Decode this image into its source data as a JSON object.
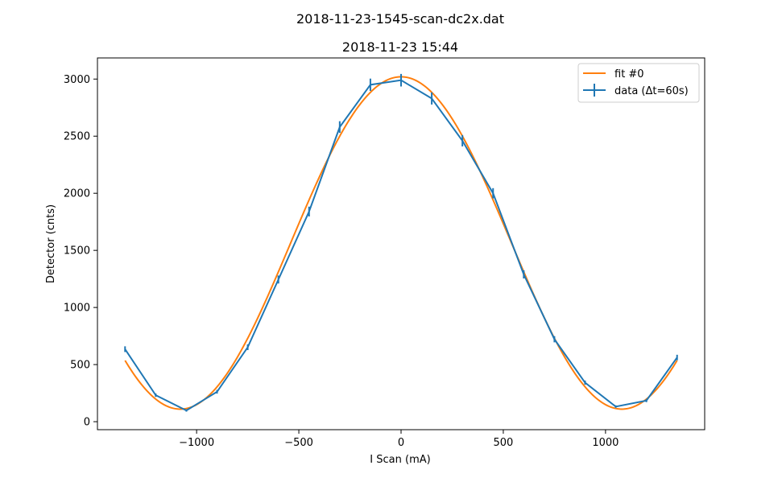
{
  "figure": {
    "suptitle": "2018-11-23-1545-scan-dc2x.dat"
  },
  "chart_data": {
    "type": "line",
    "title": "2018-11-23 15:44",
    "xlabel": "I Scan (mA)",
    "ylabel": "Detector (cnts)",
    "xlim": [
      -1485,
      1485
    ],
    "ylim": [
      -70,
      3185
    ],
    "xticks": [
      -1000,
      -500,
      0,
      500,
      1000
    ],
    "xtick_labels": [
      "−1000",
      "−500",
      "0",
      "500",
      "1000"
    ],
    "yticks": [
      0,
      500,
      1000,
      1500,
      2000,
      2500,
      3000
    ],
    "ytick_labels": [
      "0",
      "500",
      "1000",
      "1500",
      "2000",
      "2500",
      "3000"
    ],
    "grid": false,
    "legend_position": "top-right",
    "series": [
      {
        "name": "fit #0",
        "color": "#ff7f0e",
        "kind": "curve",
        "model": "cosine",
        "params": {
          "offset": 1565,
          "amplitude": 1455,
          "period": 2160,
          "center": 0
        },
        "x_range": [
          -1350,
          1350
        ]
      },
      {
        "name": "data (Δt=60s)",
        "color": "#1f77b4",
        "kind": "errorbar",
        "x": [
          -1350,
          -1200,
          -1050,
          -900,
          -750,
          -600,
          -450,
          -300,
          -150,
          0,
          150,
          300,
          450,
          600,
          750,
          900,
          1050,
          1200,
          1350
        ],
        "y": [
          635,
          232,
          98,
          262,
          652,
          1245,
          1840,
          2580,
          2950,
          2990,
          2830,
          2460,
          2000,
          1290,
          722,
          342,
          132,
          185,
          562
        ],
        "yerr": [
          25,
          15,
          10,
          16,
          25,
          35,
          43,
          51,
          54,
          55,
          53,
          50,
          45,
          36,
          27,
          18,
          11,
          14,
          24
        ]
      }
    ]
  }
}
